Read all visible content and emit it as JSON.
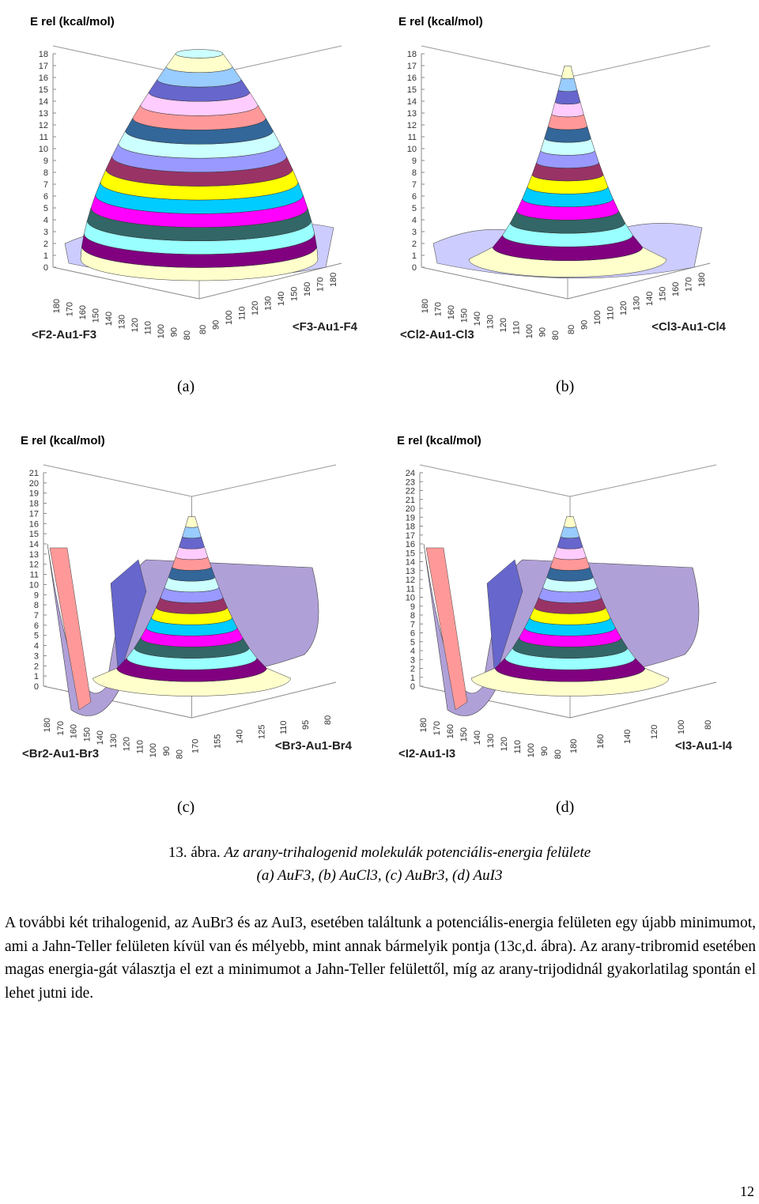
{
  "panels": [
    {
      "id": "a",
      "label": "(a)",
      "energy_axis": "E rel (kcal/mol)",
      "e_ticks": [
        "0",
        "1",
        "2",
        "3",
        "4",
        "5",
        "6",
        "7",
        "8",
        "9",
        "10",
        "11",
        "12",
        "13",
        "14",
        "15",
        "16",
        "17",
        "18"
      ],
      "left_ticks": [
        "180",
        "170",
        "160",
        "150",
        "140",
        "130",
        "120",
        "110",
        "100",
        "90",
        "80"
      ],
      "right_ticks": [
        "80",
        "90",
        "100",
        "110",
        "120",
        "130",
        "140",
        "150",
        "160",
        "170",
        "180"
      ],
      "left_axis": "<F2-Au1-F3",
      "right_axis": "<F3-Au1-F4",
      "shape": "mesa"
    },
    {
      "id": "b",
      "label": "(b)",
      "energy_axis": "E rel (kcal/mol)",
      "e_ticks": [
        "0",
        "1",
        "2",
        "3",
        "4",
        "5",
        "6",
        "7",
        "8",
        "9",
        "10",
        "11",
        "12",
        "13",
        "14",
        "15",
        "16",
        "17",
        "18"
      ],
      "left_ticks": [
        "180",
        "170",
        "160",
        "150",
        "140",
        "130",
        "120",
        "110",
        "100",
        "90",
        "80"
      ],
      "right_ticks": [
        "80",
        "90",
        "100",
        "110",
        "120",
        "130",
        "140",
        "150",
        "160",
        "170",
        "180"
      ],
      "left_axis": "<Cl2-Au1-Cl3",
      "right_axis": "<Cl3-Au1-Cl4",
      "shape": "peak"
    },
    {
      "id": "c",
      "label": "(c)",
      "energy_axis": "E rel (kcal/mol)",
      "e_ticks": [
        "0",
        "1",
        "2",
        "3",
        "4",
        "5",
        "6",
        "7",
        "8",
        "9",
        "10",
        "11",
        "12",
        "13",
        "14",
        "15",
        "16",
        "17",
        "18",
        "19",
        "20",
        "21"
      ],
      "left_ticks": [
        "180",
        "170",
        "160",
        "150",
        "140",
        "130",
        "120",
        "110",
        "100",
        "90",
        "80"
      ],
      "right_ticks": [
        "170",
        "155",
        "140",
        "125",
        "110",
        "95",
        "80"
      ],
      "left_axis": "<Br2-Au1-Br3",
      "right_axis": "<Br3-Au1-Br4",
      "shape": "peak-well"
    },
    {
      "id": "d",
      "label": "(d)",
      "energy_axis": "E rel (kcal/mol)",
      "e_ticks": [
        "0",
        "1",
        "2",
        "3",
        "4",
        "5",
        "6",
        "7",
        "8",
        "9",
        "10",
        "11",
        "12",
        "13",
        "14",
        "15",
        "16",
        "17",
        "18",
        "19",
        "20",
        "21",
        "22",
        "23",
        "24"
      ],
      "left_ticks": [
        "180",
        "170",
        "160",
        "150",
        "140",
        "130",
        "120",
        "110",
        "100",
        "90",
        "80"
      ],
      "right_ticks": [
        "180",
        "160",
        "140",
        "120",
        "100",
        "80"
      ],
      "left_axis": "<I2-Au1-I3",
      "right_axis": "<I3-Au1-I4",
      "shape": "peak-well"
    }
  ],
  "caption": {
    "line1_prefix": "13. ábra. ",
    "line1_italic": "Az arany-trihalogenid molekulák potenciális-energia felülete",
    "line2": "(a) AuF3, (b) AuCl3, (c) AuBr3, (d) AuI3"
  },
  "body_text": "A további két trihalogenid, az AuBr3 és az AuI3, esetében találtunk a potenciális-energia felületen egy újabb minimumot, ami a Jahn-Teller felületen kívül van és mélyebb, mint annak bármelyik pontja (13c,d. ábra). Az arany-tribromid esetében magas energia-gát választja el ezt a minimumot a Jahn-Teller felülettől, míg az arany-trijodidnál gyakorlatilag spontán el lehet jutni ide.",
  "page_number": "12",
  "colors": {
    "bands": [
      "#ffffcc",
      "#99ccff",
      "#6666cc",
      "#ffccff",
      "#ff9999",
      "#336699",
      "#ccffff",
      "#9999ff",
      "#993366",
      "#ffff00",
      "#00ccff",
      "#ff00ff",
      "#336666",
      "#99ffff",
      "#800080"
    ]
  }
}
